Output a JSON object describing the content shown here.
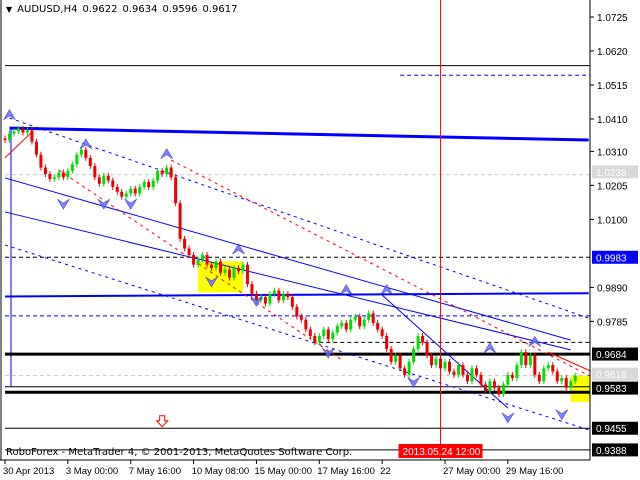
{
  "header": {
    "symbol": "AUDUSD,H4",
    "open": "0.9622",
    "high": "0.9634",
    "low": "0.9596",
    "close": "0.9617"
  },
  "footer": {
    "copyright": "RoboForex - MetaTrader 4, © 2001-2013, MetaQuotes Software Corp."
  },
  "colors": {
    "bull": "#00dd00",
    "bear": "#ee0000",
    "line_blue": "#0000ff",
    "highlight": "#ffff00",
    "crosshair": "#ff0000"
  },
  "chart_data": {
    "type": "candlestick",
    "title": "AUDUSD,H4",
    "ylim": [
      0.933,
      1.078
    ],
    "grid": false,
    "y_ticks": [
      "1.0725",
      "1.0620",
      "1.0515",
      "1.0410",
      "1.0310",
      "1.0205",
      "1.0100",
      "0.9890",
      "0.9785"
    ],
    "x_ticks": [
      {
        "label": "30 Apr 2013",
        "index": 0
      },
      {
        "label": "3 May 00:00",
        "index": 14
      },
      {
        "label": "7 May 16:00",
        "index": 28
      },
      {
        "label": "10 May 08:00",
        "index": 42
      },
      {
        "label": "15 May 00:00",
        "index": 56
      },
      {
        "label": "17 May 16:00",
        "index": 70
      },
      {
        "label": "22",
        "index": 84
      },
      {
        "label": "27 May 00:00",
        "index": 98
      },
      {
        "label": "29 May 16:00",
        "index": 112
      }
    ],
    "crosshair": {
      "label": "2013.05.24 12:00",
      "index": 97
    },
    "price_labels": [
      {
        "text": "1.0238",
        "bg": "#d8d8d8",
        "fg": "#ffffff",
        "price": 1.0238
      },
      {
        "text": "0.9983",
        "bg": "#0000ff",
        "fg": "#ffffff",
        "price": 0.9983
      },
      {
        "text": "0.9684",
        "bg": "#000000",
        "fg": "#ffffff",
        "price": 0.9684
      },
      {
        "text": "0.9618",
        "bg": "#d8d8d8",
        "fg": "#ffffff",
        "price": 0.9618
      },
      {
        "text": "0.9583",
        "bg": "#000000",
        "fg": "#ffffff",
        "price": 0.9583
      },
      {
        "text": "0.9455",
        "bg": "#000000",
        "fg": "#ffffff",
        "price": 0.9455
      },
      {
        "text": "0.9388",
        "bg": "#000000",
        "fg": "#ffffff",
        "price": 0.9388
      }
    ],
    "closes": [
      1.0345,
      1.0365,
      1.0372,
      1.038,
      1.0368,
      1.0375,
      1.034,
      1.03,
      1.026,
      1.024,
      1.0225,
      1.023,
      1.0245,
      1.023,
      1.025,
      1.027,
      1.03,
      1.0315,
      1.029,
      1.0265,
      1.023,
      1.021,
      1.0235,
      1.022,
      1.02,
      1.0185,
      1.017,
      1.018,
      1.0195,
      1.018,
      1.02,
      1.0215,
      1.02,
      1.022,
      1.025,
      1.024,
      1.026,
      1.023,
      1.015,
      1.004,
      1.001,
      0.999,
      0.996,
      0.9975,
      0.999,
      0.996,
      0.995,
      0.997,
      0.9935,
      0.9945,
      0.992,
      0.995,
      0.994,
      0.996,
      0.99,
      0.987,
      0.985,
      0.986,
      0.984,
      0.987,
      0.988,
      0.985,
      0.987,
      0.986,
      0.983,
      0.98,
      0.979,
      0.976,
      0.974,
      0.972,
      0.974,
      0.976,
      0.973,
      0.975,
      0.977,
      0.978,
      0.976,
      0.979,
      0.98,
      0.977,
      0.979,
      0.981,
      0.978,
      0.976,
      0.974,
      0.97,
      0.966,
      0.968,
      0.964,
      0.962,
      0.966,
      0.97,
      0.974,
      0.972,
      0.968,
      0.965,
      0.967,
      0.964,
      0.966,
      0.963,
      0.962,
      0.965,
      0.962,
      0.96,
      0.964,
      0.962,
      0.959,
      0.957,
      0.96,
      0.958,
      0.956,
      0.959,
      0.962,
      0.961,
      0.965,
      0.969,
      0.965,
      0.968,
      0.962,
      0.96,
      0.964,
      0.965,
      0.963,
      0.96,
      0.961,
      0.958,
      0.96,
      0.9617
    ],
    "levels": [
      {
        "price": 1.0575,
        "color": "#000000",
        "style": "solid",
        "weight": 1,
        "from": 0
      },
      {
        "price": 1.0545,
        "color": "#0000ff",
        "style": "dashed",
        "weight": 1,
        "from": 88
      },
      {
        "price": 1.0238,
        "color": "#cccccc",
        "style": "dashed",
        "weight": 1,
        "from": 0
      },
      {
        "price": 0.9983,
        "color": "#000000",
        "style": "dashed",
        "weight": 1,
        "from": 0
      },
      {
        "price": 0.9802,
        "color": "#0000ff",
        "style": "dashed",
        "weight": 1,
        "from": 0
      },
      {
        "price": 0.972,
        "color": "#000000",
        "style": "dashed",
        "weight": 1,
        "from": 70
      },
      {
        "price": 0.9684,
        "color": "#000000",
        "style": "solid",
        "weight": 3,
        "from": 0
      },
      {
        "price": 0.9618,
        "color": "#cccccc",
        "style": "dashed",
        "weight": 1,
        "from": 0
      },
      {
        "price": 0.9583,
        "color": "#000000",
        "style": "solid",
        "weight": 1,
        "from": 0
      },
      {
        "price": 0.9566,
        "color": "#000000",
        "style": "solid",
        "weight": 3,
        "from": 0
      },
      {
        "price": 0.9455,
        "color": "#000000",
        "style": "solid",
        "weight": 1,
        "from": 0
      },
      {
        "price": 0.9388,
        "color": "#000000",
        "style": "solid",
        "weight": 1,
        "from": 0
      }
    ],
    "trendlines": [
      {
        "p1": [
          1,
          1.0382
        ],
        "p2": [
          130,
          1.0345
        ],
        "color": "#0000ff",
        "style": "solid",
        "weight": 3
      },
      {
        "p1": [
          0,
          0.9862
        ],
        "p2": [
          130,
          0.9872
        ],
        "color": "#0000ff",
        "style": "solid",
        "weight": 2
      },
      {
        "p1": [
          0,
          1.0228
        ],
        "p2": [
          126,
          0.9727
        ],
        "color": "#0000ff",
        "style": "solid",
        "weight": 1
      },
      {
        "p1": [
          0,
          1.0123
        ],
        "p2": [
          126,
          0.9697
        ],
        "color": "#0000ff",
        "style": "solid",
        "weight": 1
      },
      {
        "p1": [
          84,
          0.9866
        ],
        "p2": [
          112,
          0.9517
        ],
        "color": "#0000ff",
        "style": "solid",
        "weight": 1
      },
      {
        "p1": [
          1,
          1.0413
        ],
        "p2": [
          130,
          0.9795
        ],
        "color": "#0000ff",
        "style": "dashed",
        "weight": 1
      },
      {
        "p1": [
          0,
          1.0021
        ],
        "p2": [
          130,
          0.945
        ],
        "color": "#0000ff",
        "style": "dashed",
        "weight": 1
      },
      {
        "p1": [
          12,
          1.0252
        ],
        "p2": [
          75,
          0.9666
        ],
        "color": "#ff0000",
        "style": "dashed",
        "weight": 1
      },
      {
        "p1": [
          37,
          1.0283
        ],
        "p2": [
          132,
          0.9604
        ],
        "color": "#ff0000",
        "style": "dashed",
        "weight": 1
      },
      {
        "p1": [
          0,
          1.029
        ],
        "p2": [
          6,
          1.037
        ],
        "color": "#ff0000",
        "style": "solid",
        "weight": 1
      },
      {
        "p1": [
          121,
          0.969
        ],
        "p2": [
          131,
          0.9628
        ],
        "color": "#ff0000",
        "style": "solid",
        "weight": 1
      }
    ],
    "boxes": [
      {
        "i1": 43,
        "i2": 53,
        "p1": 0.997,
        "p2": 0.9875,
        "color": "#ffff00"
      },
      {
        "i1": 126,
        "i2": 133,
        "p1": 0.9618,
        "p2": 0.9536,
        "color": "#ffff00"
      }
    ],
    "fractals": [
      {
        "i": 1,
        "price": 1.042,
        "dir": "up"
      },
      {
        "i": 18,
        "price": 1.033,
        "dir": "up"
      },
      {
        "i": 36,
        "price": 1.03,
        "dir": "up"
      },
      {
        "i": 13,
        "price": 1.015,
        "dir": "down"
      },
      {
        "i": 22,
        "price": 1.015,
        "dir": "down"
      },
      {
        "i": 28,
        "price": 1.015,
        "dir": "down"
      },
      {
        "i": 52,
        "price": 1.0005,
        "dir": "up"
      },
      {
        "i": 46,
        "price": 0.991,
        "dir": "down"
      },
      {
        "i": 56,
        "price": 0.985,
        "dir": "down"
      },
      {
        "i": 76,
        "price": 0.988,
        "dir": "up"
      },
      {
        "i": 85,
        "price": 0.988,
        "dir": "up"
      },
      {
        "i": 72,
        "price": 0.969,
        "dir": "down"
      },
      {
        "i": 91,
        "price": 0.96,
        "dir": "down"
      },
      {
        "i": 108,
        "price": 0.97,
        "dir": "up"
      },
      {
        "i": 118,
        "price": 0.972,
        "dir": "up"
      },
      {
        "i": 112,
        "price": 0.949,
        "dir": "down"
      },
      {
        "i": 124,
        "price": 0.95,
        "dir": "down"
      }
    ],
    "signal_arrow": {
      "i": 35,
      "price": 0.9475,
      "dir": "down",
      "color": "#ff0000"
    }
  }
}
